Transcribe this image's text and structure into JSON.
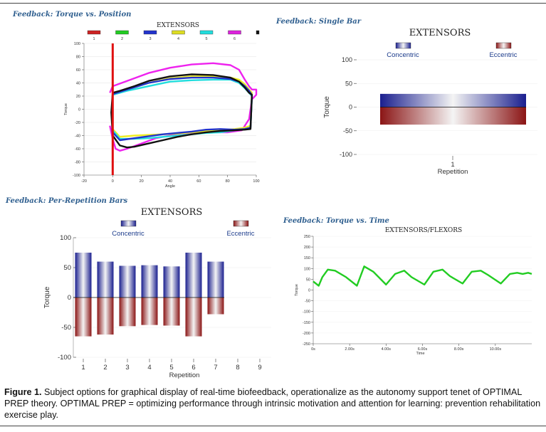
{
  "figure": {
    "caption_label": "Figure 1.",
    "caption_text": "Subject options for graphical display of real-time biofeedback, operationalize as the autonomy support tenet of OPTIMAL PREP theory. OPTIMAL PREP = optimizing performance through intrinsic motivation and attention for learning: prevention rehabilitation exercise play."
  },
  "colors": {
    "panel_title": "#2f5f8f",
    "concentric_dark": "#1a1f8f",
    "eccentric_dark": "#8b1515",
    "green_trace": "#22cc22"
  },
  "chart_data": [
    {
      "id": "torque-vs-position",
      "panel_title": "Feedback: Torque vs. Position",
      "type": "line",
      "title": "EXTENSORS",
      "xlabel": "Angle",
      "ylabel": "Torque",
      "xlim": [
        -20,
        100
      ],
      "ylim": [
        -100,
        100
      ],
      "xticks": [
        -20,
        0,
        20,
        40,
        60,
        80,
        100
      ],
      "yticks": [
        -100,
        -80,
        -60,
        -40,
        -20,
        0,
        20,
        40,
        60,
        80,
        100
      ],
      "legend": [
        "1",
        "2",
        "3",
        "4",
        "5",
        "6",
        ""
      ],
      "legend_colors": [
        "#cc2222",
        "#22cc22",
        "#2233cc",
        "#dddd22",
        "#22dddd",
        "#dd22dd",
        "#111111"
      ],
      "marker": {
        "x": 0,
        "color": "#e01010"
      },
      "series": [
        {
          "name": "6",
          "color": "#ee22ee",
          "x": [
            -2,
            0,
            10,
            25,
            40,
            55,
            70,
            82,
            88,
            92,
            95,
            97,
            100,
            100,
            97,
            95,
            90,
            80,
            70,
            60,
            50,
            40,
            30,
            20,
            10,
            5,
            2,
            0,
            -2
          ],
          "y": [
            25,
            35,
            43,
            55,
            63,
            68,
            70,
            67,
            60,
            45,
            35,
            30,
            30,
            22,
            15,
            -15,
            -32,
            -35,
            -35,
            -34,
            -37,
            -40,
            -44,
            -52,
            -60,
            -63,
            -60,
            -45,
            -25
          ]
        },
        {
          "name": "4",
          "color": "#eeee22",
          "x": [
            0,
            10,
            25,
            40,
            55,
            70,
            82,
            88,
            92,
            95,
            97,
            96,
            92,
            85,
            75,
            65,
            55,
            45,
            35,
            25,
            15,
            5,
            0
          ],
          "y": [
            25,
            30,
            40,
            47,
            50,
            50,
            48,
            45,
            38,
            30,
            25,
            -25,
            -28,
            -30,
            -32,
            -33,
            -35,
            -37,
            -38,
            -39,
            -40,
            -42,
            -30
          ]
        },
        {
          "name": "5",
          "color": "#22dddd",
          "x": [
            0,
            10,
            25,
            40,
            55,
            70,
            82,
            88,
            92,
            95,
            97,
            96,
            92,
            85,
            75,
            65,
            55,
            45,
            35,
            25,
            15,
            5,
            0
          ],
          "y": [
            22,
            28,
            35,
            42,
            44,
            45,
            45,
            40,
            32,
            25,
            20,
            -28,
            -30,
            -32,
            -35,
            -36,
            -38,
            -40,
            -42,
            -44,
            -45,
            -45,
            -32
          ]
        },
        {
          "name": "3",
          "color": "#2233cc",
          "x": [
            0,
            10,
            25,
            40,
            55,
            70,
            82,
            88,
            92,
            95,
            97,
            96,
            92,
            85,
            75,
            65,
            55,
            45,
            35,
            25,
            15,
            5,
            0
          ],
          "y": [
            23,
            30,
            40,
            46,
            48,
            48,
            46,
            42,
            35,
            28,
            22,
            -28,
            -30,
            -31,
            -30,
            -31,
            -34,
            -36,
            -38,
            -41,
            -44,
            -47,
            -35
          ]
        },
        {
          "name": "black",
          "color": "#111111",
          "x": [
            0,
            5,
            15,
            25,
            40,
            55,
            70,
            82,
            88,
            92,
            95,
            97,
            96,
            92,
            85,
            75,
            65,
            55,
            45,
            35,
            25,
            15,
            10,
            5,
            0,
            -1,
            0
          ],
          "y": [
            25,
            28,
            35,
            43,
            50,
            53,
            52,
            48,
            42,
            33,
            25,
            22,
            -30,
            -31,
            -32,
            -33,
            -35,
            -38,
            -42,
            -47,
            -52,
            -57,
            -58,
            -55,
            -40,
            -5,
            25
          ]
        }
      ]
    },
    {
      "id": "single-bar",
      "panel_title": "Feedback: Single Bar",
      "type": "bar",
      "title": "EXTENSORS",
      "legend": [
        "Concentric",
        "Eccentric"
      ],
      "xlabel": "Repetition",
      "ylabel": "Torque",
      "categories": [
        "1"
      ],
      "series": [
        {
          "name": "Concentric",
          "values": [
            28
          ]
        },
        {
          "name": "Eccentric",
          "values": [
            -37
          ]
        }
      ],
      "ylim": [
        -100,
        100
      ],
      "yticks": [
        -100,
        -50,
        0,
        50,
        100
      ]
    },
    {
      "id": "per-repetition",
      "panel_title": "Feedback: Per-Repetition Bars",
      "type": "bar",
      "title": "EXTENSORS",
      "legend": [
        "Concentric",
        "Eccentric"
      ],
      "xlabel": "Repetition",
      "ylabel": "Torque",
      "categories": [
        "1",
        "2",
        "3",
        "4",
        "5",
        "6",
        "7",
        "8",
        "9"
      ],
      "series": [
        {
          "name": "Concentric",
          "values": [
            75,
            60,
            53,
            54,
            52,
            75,
            60,
            null,
            null
          ]
        },
        {
          "name": "Eccentric",
          "values": [
            -65,
            -62,
            -48,
            -46,
            -47,
            -65,
            -28,
            null,
            null
          ]
        }
      ],
      "ylim": [
        -100,
        100
      ],
      "yticks": [
        -100,
        -50,
        0,
        50,
        100
      ]
    },
    {
      "id": "torque-vs-time",
      "panel_title": "Feedback: Torque vs. Time",
      "type": "line",
      "title": "EXTENSORS/FLEXORS",
      "xlabel": "Time",
      "ylabel": "Torque",
      "xlim": [
        0,
        12
      ],
      "ylim": [
        -250,
        250
      ],
      "xticks": [
        0,
        2,
        4,
        6,
        8,
        10
      ],
      "xtick_labels": [
        "0s",
        "2.00s",
        "4.00s",
        "6.00s",
        "8.00s",
        "10.00s"
      ],
      "yticks": [
        -250,
        -200,
        -150,
        -100,
        -50,
        0,
        50,
        100,
        150,
        200,
        250
      ],
      "series": [
        {
          "name": "Torque",
          "color": "#22cc22",
          "x": [
            0,
            0.3,
            0.5,
            0.8,
            1.2,
            1.8,
            2.4,
            2.8,
            3.3,
            4.0,
            4.5,
            5.0,
            5.4,
            6.1,
            6.6,
            7.1,
            7.5,
            8.2,
            8.7,
            9.2,
            9.6,
            10.3,
            10.8,
            11.2,
            11.5,
            11.8,
            12
          ],
          "y": [
            40,
            20,
            60,
            95,
            90,
            60,
            20,
            110,
            85,
            25,
            75,
            90,
            60,
            25,
            85,
            95,
            65,
            30,
            85,
            90,
            70,
            30,
            75,
            80,
            75,
            80,
            75
          ]
        }
      ]
    }
  ]
}
